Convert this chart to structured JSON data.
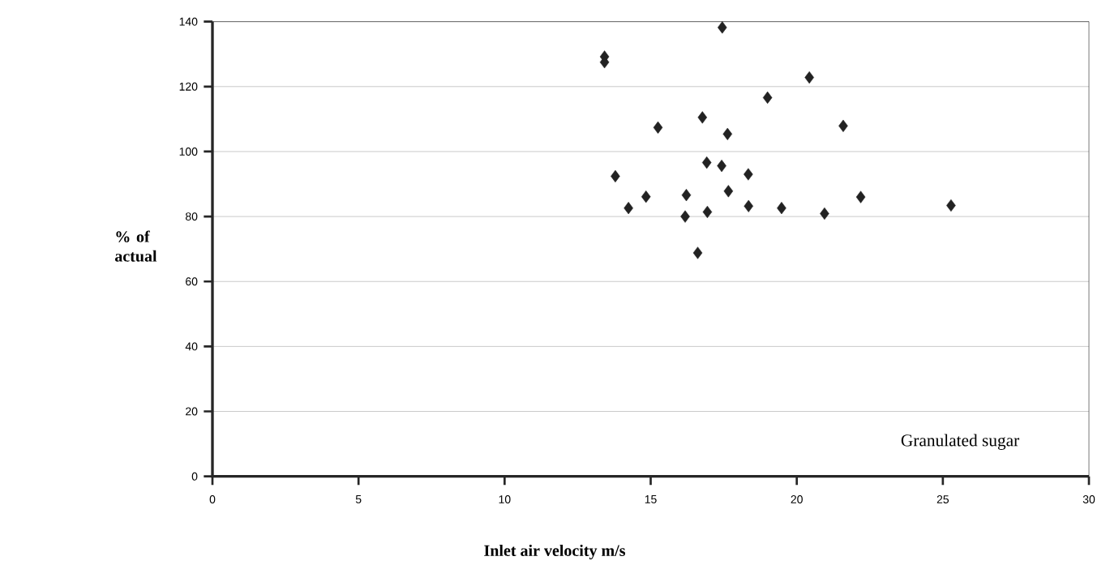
{
  "chart_data": {
    "type": "scatter",
    "xlabel": "Inlet air velocity m/s",
    "ylabel": "% of actual",
    "annotations": [
      "Granulated sugar"
    ],
    "xlim": [
      0,
      30
    ],
    "ylim": [
      0,
      140
    ],
    "xticks": [
      0,
      5,
      10,
      15,
      20,
      25,
      30
    ],
    "yticks": [
      0,
      20,
      40,
      60,
      80,
      100,
      120,
      140
    ],
    "grid": "y",
    "marker": "diamond",
    "series": [
      {
        "color": "#222222",
        "x": [
          13.42,
          13.42,
          17.45,
          20.43,
          19.0,
          16.77,
          15.25,
          17.63,
          21.59,
          16.92,
          17.43,
          18.34,
          13.79,
          17.66,
          16.22,
          14.84,
          22.19,
          25.28,
          18.35,
          19.48,
          14.24,
          16.94,
          20.95,
          16.18,
          16.61
        ],
        "values": [
          129.2,
          127.5,
          138.2,
          122.8,
          116.6,
          110.5,
          107.4,
          105.4,
          107.9,
          96.6,
          95.6,
          93.0,
          92.4,
          87.8,
          86.6,
          86.1,
          86.0,
          83.4,
          83.2,
          82.6,
          82.6,
          81.4,
          80.9,
          80.0,
          68.8
        ]
      }
    ]
  }
}
